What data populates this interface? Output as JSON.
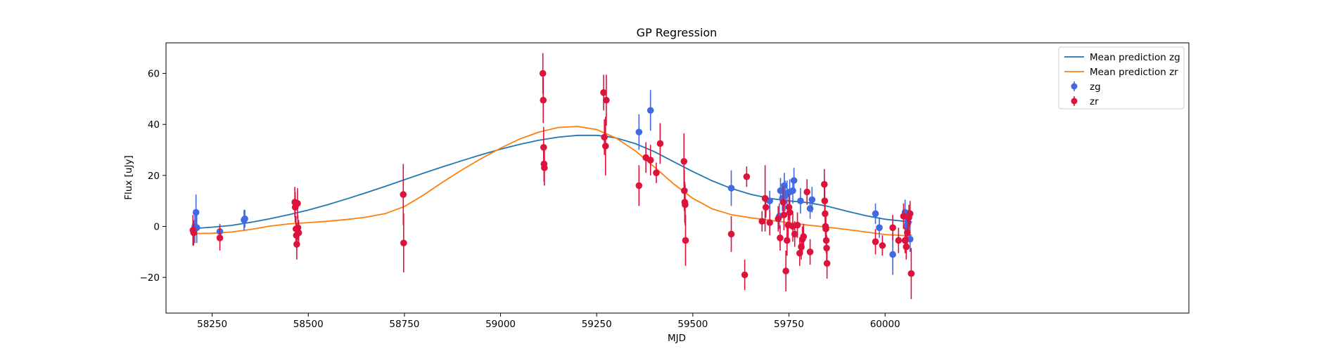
{
  "chart_data": {
    "type": "scatter",
    "title": "GP Regression",
    "xlabel": "MJD",
    "ylabel": "Flux [uJy]",
    "xlim": [
      58130,
      60790
    ],
    "ylim": [
      -34,
      72
    ],
    "xticks": [
      58250,
      58500,
      58750,
      59000,
      59250,
      59500,
      59750,
      60000
    ],
    "yticks": [
      -20,
      0,
      20,
      40,
      60
    ],
    "grid": false,
    "legend_placement": "top-right",
    "lines": [
      {
        "name": "Mean prediction zg",
        "color": "#1f77b4",
        "x": [
          58205,
          58250,
          58300,
          58350,
          58400,
          58450,
          58500,
          58550,
          58600,
          58650,
          58700,
          58750,
          58800,
          58850,
          58900,
          58950,
          59000,
          59050,
          59100,
          59150,
          59200,
          59250,
          59275,
          59300,
          59350,
          59400,
          59450,
          59500,
          59550,
          59600,
          59650,
          59700,
          59750,
          59800,
          59850,
          59900,
          59950,
          60000,
          60050,
          60070
        ],
        "y": [
          -0.8,
          -0.3,
          0.4,
          1.6,
          3.0,
          4.6,
          6.4,
          8.5,
          10.8,
          13.2,
          15.7,
          18.3,
          20.9,
          23.4,
          25.8,
          28.1,
          30.3,
          32.2,
          33.8,
          35.0,
          35.7,
          35.7,
          35.3,
          34.7,
          32.5,
          29.3,
          25.4,
          21.5,
          17.9,
          14.9,
          12.6,
          11.0,
          10.0,
          9.3,
          7.9,
          6.0,
          4.2,
          2.8,
          2.0,
          1.8
        ]
      },
      {
        "name": "Mean prediction zr",
        "color": "#ff7f0e",
        "x": [
          58205,
          58250,
          58300,
          58350,
          58400,
          58450,
          58500,
          58550,
          58600,
          58650,
          58700,
          58750,
          58800,
          58850,
          58900,
          58950,
          59000,
          59050,
          59100,
          59150,
          59200,
          59250,
          59300,
          59350,
          59400,
          59450,
          59500,
          59550,
          59600,
          59650,
          59700,
          59750,
          59800,
          59850,
          59900,
          59950,
          60000,
          60050,
          60070
        ],
        "y": [
          -2.8,
          -2.7,
          -2.2,
          -1.2,
          0.1,
          1.0,
          1.5,
          2.0,
          2.7,
          3.6,
          5.0,
          7.8,
          12.3,
          17.4,
          22.2,
          26.6,
          30.7,
          34.3,
          37.0,
          38.8,
          39.2,
          38.0,
          34.7,
          29.7,
          23.3,
          16.7,
          11.0,
          6.9,
          4.6,
          3.4,
          2.4,
          1.5,
          0.5,
          -0.3,
          -1.2,
          -2.2,
          -3.2,
          -3.6,
          -3.4
        ]
      }
    ],
    "series": [
      {
        "name": "zg",
        "color": "#4169e1",
        "points": [
          {
            "x": 58205,
            "y": 0.0,
            "err": 6.5
          },
          {
            "x": 58208,
            "y": 5.5,
            "err": 7.0
          },
          {
            "x": 58210,
            "y": -0.5,
            "err": 6.0
          },
          {
            "x": 58270,
            "y": -2.0,
            "err": 3.0
          },
          {
            "x": 58333,
            "y": 2.5,
            "err": 4.0
          },
          {
            "x": 58335,
            "y": 3.0,
            "err": 3.5
          },
          {
            "x": 59360,
            "y": 37.0,
            "err": 7.0
          },
          {
            "x": 59390,
            "y": 45.5,
            "err": 8.0
          },
          {
            "x": 59600,
            "y": 15.0,
            "err": 7.0
          },
          {
            "x": 59700,
            "y": 10.0,
            "err": 4.0
          },
          {
            "x": 59725,
            "y": 4.0,
            "err": 5.0
          },
          {
            "x": 59728,
            "y": 14.0,
            "err": 5.0
          },
          {
            "x": 59733,
            "y": 11.0,
            "err": 5.0
          },
          {
            "x": 59738,
            "y": 16.0,
            "err": 5.0
          },
          {
            "x": 59740,
            "y": 12.0,
            "err": 6.0
          },
          {
            "x": 59745,
            "y": 13.0,
            "err": 5.0
          },
          {
            "x": 59752,
            "y": 13.5,
            "err": 5.0
          },
          {
            "x": 59760,
            "y": 14.0,
            "err": 5.0
          },
          {
            "x": 59763,
            "y": 18.0,
            "err": 5.0
          },
          {
            "x": 59780,
            "y": 10.0,
            "err": 5.0
          },
          {
            "x": 59810,
            "y": 10.5,
            "err": 5.0
          },
          {
            "x": 59805,
            "y": 7.0,
            "err": 4.0
          },
          {
            "x": 59975,
            "y": 5.0,
            "err": 4.0
          },
          {
            "x": 59985,
            "y": -0.5,
            "err": 4.0
          },
          {
            "x": 60020,
            "y": -11.0,
            "err": 8.0
          },
          {
            "x": 60052,
            "y": 5.5,
            "err": 5.0
          },
          {
            "x": 60055,
            "y": 0.0,
            "err": 5.0
          },
          {
            "x": 60060,
            "y": 1.5,
            "err": 5.0
          },
          {
            "x": 60065,
            "y": -5.0,
            "err": 5.0
          }
        ]
      },
      {
        "name": "zr",
        "color": "#dc143c",
        "points": [
          {
            "x": 58200,
            "y": -1.5,
            "err": 6.0
          },
          {
            "x": 58202,
            "y": -2.5,
            "err": 5.0
          },
          {
            "x": 58270,
            "y": -4.5,
            "err": 5.0
          },
          {
            "x": 58465,
            "y": 9.5,
            "err": 6.0
          },
          {
            "x": 58466,
            "y": 7.5,
            "err": 6.0
          },
          {
            "x": 58468,
            "y": -1.0,
            "err": 5.0
          },
          {
            "x": 58469,
            "y": -3.5,
            "err": 5.0
          },
          {
            "x": 58470,
            "y": -7.0,
            "err": 6.0
          },
          {
            "x": 58472,
            "y": 9.0,
            "err": 6.0
          },
          {
            "x": 58473,
            "y": -0.5,
            "err": 5.0
          },
          {
            "x": 58475,
            "y": -2.5,
            "err": 5.0
          },
          {
            "x": 58747,
            "y": 12.5,
            "err": 12.0
          },
          {
            "x": 58748,
            "y": -6.5,
            "err": 11.5
          },
          {
            "x": 59110,
            "y": 60.0,
            "err": 8.0
          },
          {
            "x": 59111,
            "y": 49.5,
            "err": 9.0
          },
          {
            "x": 59112,
            "y": 31.0,
            "err": 8.0
          },
          {
            "x": 59113,
            "y": 24.5,
            "err": 7.0
          },
          {
            "x": 59114,
            "y": 23.0,
            "err": 7.0
          },
          {
            "x": 59268,
            "y": 52.5,
            "err": 7.0
          },
          {
            "x": 59270,
            "y": 35.0,
            "err": 7.0
          },
          {
            "x": 59273,
            "y": 31.5,
            "err": 11.5
          },
          {
            "x": 59275,
            "y": 49.5,
            "err": 10.0
          },
          {
            "x": 59360,
            "y": 16.0,
            "err": 8.0
          },
          {
            "x": 59378,
            "y": 27.0,
            "err": 6.0
          },
          {
            "x": 59390,
            "y": 26.0,
            "err": 6.0
          },
          {
            "x": 59405,
            "y": 21.0,
            "err": 4.0
          },
          {
            "x": 59415,
            "y": 32.5,
            "err": 8.0
          },
          {
            "x": 59477,
            "y": 25.5,
            "err": 11.0
          },
          {
            "x": 59478,
            "y": 14.0,
            "err": 8.0
          },
          {
            "x": 59479,
            "y": 9.5,
            "err": 8.0
          },
          {
            "x": 59480,
            "y": 8.5,
            "err": 8.0
          },
          {
            "x": 59481,
            "y": -5.5,
            "err": 10.0
          },
          {
            "x": 59600,
            "y": -3.0,
            "err": 7.0
          },
          {
            "x": 59635,
            "y": -19.0,
            "err": 6.0
          },
          {
            "x": 59640,
            "y": 19.5,
            "err": 4.0
          },
          {
            "x": 59680,
            "y": 2.0,
            "err": 4.0
          },
          {
            "x": 59688,
            "y": 11.0,
            "err": 13.0
          },
          {
            "x": 59690,
            "y": 7.5,
            "err": 4.0
          },
          {
            "x": 59700,
            "y": 1.5,
            "err": 5.0
          },
          {
            "x": 59722,
            "y": 3.0,
            "err": 5.0
          },
          {
            "x": 59727,
            "y": -4.5,
            "err": 5.0
          },
          {
            "x": 59735,
            "y": 9.5,
            "err": 6.0
          },
          {
            "x": 59737,
            "y": 4.5,
            "err": 6.0
          },
          {
            "x": 59742,
            "y": -17.5,
            "err": 8.0
          },
          {
            "x": 59745,
            "y": -5.5,
            "err": 6.0
          },
          {
            "x": 59748,
            "y": 0.5,
            "err": 5.0
          },
          {
            "x": 59750,
            "y": 7.5,
            "err": 5.0
          },
          {
            "x": 59752,
            "y": 5.5,
            "err": 5.0
          },
          {
            "x": 59760,
            "y": 0.0,
            "err": 6.0
          },
          {
            "x": 59765,
            "y": -3.0,
            "err": 5.0
          },
          {
            "x": 59772,
            "y": 0.5,
            "err": 5.0
          },
          {
            "x": 59778,
            "y": -10.5,
            "err": 5.0
          },
          {
            "x": 59782,
            "y": -8.0,
            "err": 5.0
          },
          {
            "x": 59785,
            "y": -5.0,
            "err": 5.0
          },
          {
            "x": 59788,
            "y": -4.0,
            "err": 5.0
          },
          {
            "x": 59797,
            "y": 13.5,
            "err": 5.0
          },
          {
            "x": 59805,
            "y": -10.0,
            "err": 5.0
          },
          {
            "x": 59842,
            "y": 16.5,
            "err": 6.0
          },
          {
            "x": 59843,
            "y": 10.0,
            "err": 6.0
          },
          {
            "x": 59844,
            "y": 5.0,
            "err": 5.0
          },
          {
            "x": 59845,
            "y": 0.0,
            "err": 5.0
          },
          {
            "x": 59846,
            "y": -1.0,
            "err": 5.0
          },
          {
            "x": 59847,
            "y": -5.5,
            "err": 5.0
          },
          {
            "x": 59848,
            "y": -8.5,
            "err": 5.0
          },
          {
            "x": 59849,
            "y": -14.5,
            "err": 6.0
          },
          {
            "x": 59975,
            "y": -6.0,
            "err": 5.0
          },
          {
            "x": 59993,
            "y": -7.5,
            "err": 4.0
          },
          {
            "x": 60020,
            "y": -0.5,
            "err": 5.0
          },
          {
            "x": 60035,
            "y": -5.5,
            "err": 5.0
          },
          {
            "x": 60048,
            "y": 4.0,
            "err": 5.0
          },
          {
            "x": 60052,
            "y": -5.5,
            "err": 5.0
          },
          {
            "x": 60055,
            "y": -8.0,
            "err": 5.0
          },
          {
            "x": 60058,
            "y": -2.5,
            "err": 5.0
          },
          {
            "x": 60062,
            "y": 3.5,
            "err": 5.0
          },
          {
            "x": 60065,
            "y": 5.0,
            "err": 5.0
          },
          {
            "x": 60068,
            "y": -18.5,
            "err": 10.0
          }
        ]
      }
    ],
    "legend": [
      "Mean prediction zg",
      "Mean prediction zr",
      "zg",
      "zr"
    ]
  }
}
